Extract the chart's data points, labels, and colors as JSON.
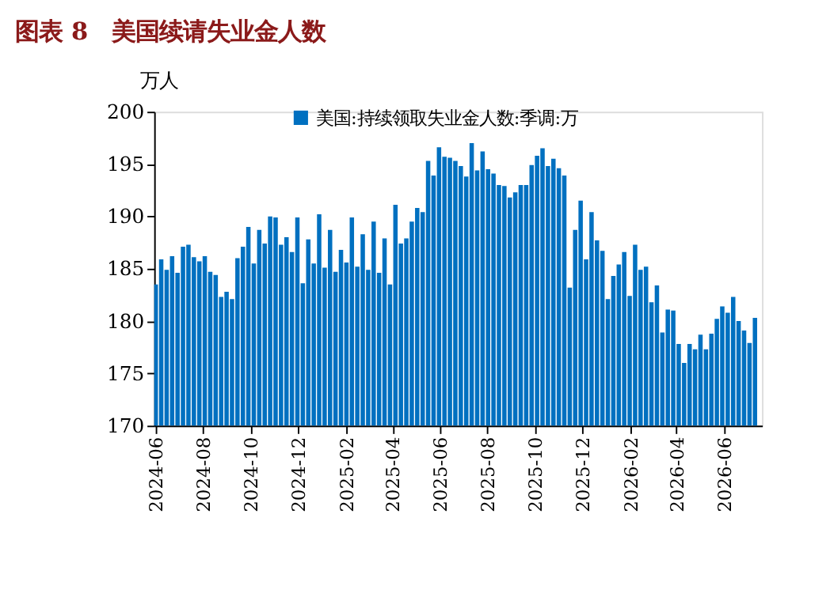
{
  "chart_data": {
    "type": "bar",
    "title": "图表 8　美国续请失业金人数",
    "ylabel": "万人",
    "x": [
      "2024-06-01",
      "2024-06-08",
      "2024-06-15",
      "2024-06-22",
      "2024-06-29",
      "2024-07-06",
      "2024-07-13",
      "2024-07-20",
      "2024-07-27",
      "2024-08-03",
      "2024-08-10",
      "2024-08-17",
      "2024-08-24",
      "2024-08-31",
      "2024-09-07",
      "2024-09-14",
      "2024-09-21",
      "2024-09-28",
      "2024-10-05",
      "2024-10-12",
      "2024-10-19",
      "2024-10-26",
      "2024-11-02",
      "2024-11-09",
      "2024-11-16",
      "2024-11-23",
      "2024-11-30",
      "2024-12-07",
      "2024-12-14",
      "2024-12-21",
      "2024-12-28",
      "2025-01-04",
      "2025-01-11",
      "2025-01-18",
      "2025-01-25",
      "2025-02-01",
      "2025-02-08",
      "2025-02-15",
      "2025-02-22",
      "2025-03-01",
      "2025-03-08",
      "2025-03-15",
      "2025-03-22",
      "2025-03-29",
      "2025-04-05",
      "2025-04-12",
      "2025-04-19",
      "2025-04-26",
      "2025-05-03",
      "2025-05-10",
      "2025-05-17",
      "2025-05-24",
      "2025-05-31",
      "2025-06-07",
      "2025-06-14",
      "2025-06-21",
      "2025-06-28",
      "2025-07-05",
      "2025-07-12",
      "2025-07-19",
      "2025-07-26",
      "2025-08-02",
      "2025-08-09",
      "2025-08-16",
      "2025-08-23",
      "2025-08-30",
      "2025-09-06",
      "2025-09-13",
      "2025-09-20",
      "2025-09-27",
      "2025-10-04",
      "2025-10-11",
      "2025-10-18",
      "2025-10-25",
      "2025-11-01",
      "2025-11-08",
      "2025-11-15",
      "2025-11-22",
      "2025-11-29",
      "2025-12-06",
      "2025-12-13",
      "2025-12-20",
      "2025-12-27",
      "2026-01-03",
      "2026-01-10",
      "2026-01-17",
      "2026-01-24",
      "2026-01-31",
      "2026-02-07",
      "2026-02-14",
      "2026-02-21",
      "2026-02-28",
      "2026-03-07",
      "2026-03-14",
      "2026-03-21",
      "2026-03-28",
      "2026-04-04",
      "2026-04-11",
      "2026-04-18",
      "2026-04-25",
      "2026-05-02",
      "2026-05-09",
      "2026-05-16",
      "2026-05-23",
      "2026-05-30",
      "2026-06-06",
      "2026-06-13",
      "2026-06-20",
      "2026-06-27",
      "2026-07-04",
      "2026-07-11"
    ],
    "series": [
      {
        "name": "美国:持续领取失业金人数:季调:万",
        "color": "#0070c0",
        "values": [
          183.5,
          185.9,
          184.9,
          186.2,
          184.6,
          187.1,
          187.3,
          186.1,
          185.7,
          186.2,
          184.7,
          184.4,
          182.3,
          182.8,
          182.1,
          186.0,
          187.1,
          189.0,
          185.5,
          188.7,
          187.4,
          190.0,
          189.9,
          187.3,
          188.0,
          186.6,
          189.9,
          183.6,
          187.8,
          185.5,
          190.2,
          185.1,
          188.7,
          184.7,
          186.8,
          185.6,
          189.9,
          185.2,
          188.3,
          184.9,
          189.5,
          184.6,
          187.9,
          183.5,
          191.1,
          187.4,
          187.9,
          189.5,
          190.8,
          190.4,
          195.3,
          193.9,
          196.6,
          195.7,
          195.6,
          195.3,
          194.8,
          193.8,
          197.0,
          194.4,
          196.2,
          194.5,
          194.1,
          193.0,
          192.9,
          191.8,
          192.3,
          193.0,
          193.0,
          194.9,
          195.8,
          196.5,
          194.8,
          195.5,
          194.6,
          193.9,
          183.2,
          188.7,
          191.5,
          185.9,
          190.4,
          187.7,
          186.7,
          182.1,
          184.3,
          185.4,
          186.6,
          182.4,
          187.3,
          184.9,
          185.2,
          181.8,
          183.4,
          178.9,
          181.1,
          181.0,
          177.8,
          176.0,
          177.8,
          177.3,
          178.7,
          177.3,
          178.8,
          180.2,
          181.4,
          180.8,
          182.3,
          180.0,
          179.1,
          177.9,
          180.3
        ]
      }
    ],
    "xlim": [
      "2024-05-30",
      "2026-07-20"
    ],
    "xticks": [
      "2024-06",
      "2024-08",
      "2024-10",
      "2024-12",
      "2025-02",
      "2025-04",
      "2025-06",
      "2025-08",
      "2025-10",
      "2025-12",
      "2026-02",
      "2026-04",
      "2026-06"
    ],
    "ylim": [
      170,
      200
    ],
    "yticks": [
      170,
      175,
      180,
      185,
      190,
      195,
      200
    ],
    "grid": false,
    "legend": "top"
  }
}
